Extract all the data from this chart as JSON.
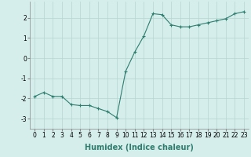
{
  "x": [
    0,
    1,
    2,
    3,
    4,
    5,
    6,
    7,
    8,
    9,
    10,
    11,
    12,
    13,
    14,
    15,
    16,
    17,
    18,
    19,
    20,
    21,
    22,
    23
  ],
  "y": [
    -1.9,
    -1.7,
    -1.9,
    -1.9,
    -2.3,
    -2.35,
    -2.35,
    -2.5,
    -2.65,
    -2.95,
    -0.65,
    0.3,
    1.1,
    2.2,
    2.15,
    1.65,
    1.55,
    1.55,
    1.65,
    1.75,
    1.85,
    1.95,
    2.2,
    2.3
  ],
  "line_color": "#2e7d6e",
  "marker": "+",
  "marker_size": 3,
  "marker_linewidth": 0.8,
  "line_width": 0.8,
  "background_color": "#d5eeeb",
  "grid_color": "#b5d5d0",
  "xlabel": "Humidex (Indice chaleur)",
  "xlabel_fontsize": 7,
  "ylim": [
    -3.5,
    2.8
  ],
  "xlim": [
    -0.5,
    23.5
  ],
  "yticks": [
    -3,
    -2,
    -1,
    0,
    1,
    2
  ],
  "xticks": [
    0,
    1,
    2,
    3,
    4,
    5,
    6,
    7,
    8,
    9,
    10,
    11,
    12,
    13,
    14,
    15,
    16,
    17,
    18,
    19,
    20,
    21,
    22,
    23
  ],
  "tick_fontsize": 5.5
}
